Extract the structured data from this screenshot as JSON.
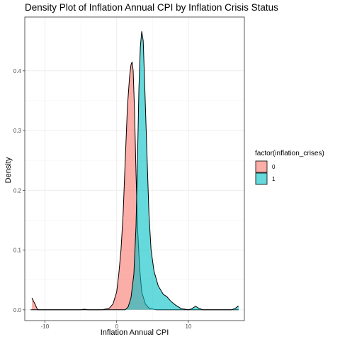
{
  "chart_data": {
    "type": "area",
    "title": "Density Plot of Inflation Annual CPI by Inflation Crisis Status",
    "xlabel": "Inflation Annual CPI",
    "ylabel": "Density",
    "xlim": [
      -12.8,
      17.8
    ],
    "ylim": [
      -0.018,
      0.49
    ],
    "x_ticks": [
      -10,
      0,
      10
    ],
    "y_ticks": [
      0.0,
      0.1,
      0.2,
      0.3,
      0.4
    ],
    "grid": true,
    "legend": {
      "title": "factor(inflation_crises)",
      "position": "right",
      "entries": [
        "0",
        "1"
      ]
    },
    "series": [
      {
        "name": "0",
        "color": "#F8766D",
        "points": [
          [
            -11.8,
            0.02
          ],
          [
            -11.4,
            0.01
          ],
          [
            -11.0,
            0.0
          ],
          [
            -9,
            0.0
          ],
          [
            -5,
            0.0
          ],
          [
            -4.5,
            0.001
          ],
          [
            -4,
            0.0
          ],
          [
            -2,
            0.0
          ],
          [
            -1,
            0.003
          ],
          [
            -0.5,
            0.01
          ],
          [
            0,
            0.03
          ],
          [
            0.3,
            0.06
          ],
          [
            0.6,
            0.1
          ],
          [
            0.9,
            0.16
          ],
          [
            1.2,
            0.25
          ],
          [
            1.5,
            0.34
          ],
          [
            1.8,
            0.39
          ],
          [
            2.0,
            0.41
          ],
          [
            2.15,
            0.415
          ],
          [
            2.3,
            0.4
          ],
          [
            2.5,
            0.33
          ],
          [
            2.7,
            0.23
          ],
          [
            2.9,
            0.14
          ],
          [
            3.2,
            0.07
          ],
          [
            3.5,
            0.03
          ],
          [
            4.0,
            0.01
          ],
          [
            4.5,
            0.003
          ],
          [
            5.5,
            0.0
          ],
          [
            10,
            0.0
          ],
          [
            17,
            0.0
          ]
        ]
      },
      {
        "name": "1",
        "color": "#00BFC4",
        "points": [
          [
            -12,
            0.0
          ],
          [
            0,
            0.0
          ],
          [
            1.2,
            0.0
          ],
          [
            1.6,
            0.005
          ],
          [
            2.0,
            0.02
          ],
          [
            2.4,
            0.06
          ],
          [
            2.7,
            0.14
          ],
          [
            2.9,
            0.25
          ],
          [
            3.1,
            0.37
          ],
          [
            3.3,
            0.44
          ],
          [
            3.5,
            0.466
          ],
          [
            3.7,
            0.45
          ],
          [
            3.9,
            0.38
          ],
          [
            4.2,
            0.27
          ],
          [
            4.5,
            0.16
          ],
          [
            4.8,
            0.1
          ],
          [
            5.2,
            0.065
          ],
          [
            5.8,
            0.04
          ],
          [
            6.5,
            0.026
          ],
          [
            7.0,
            0.022
          ],
          [
            7.5,
            0.015
          ],
          [
            8.2,
            0.008
          ],
          [
            9.0,
            0.002
          ],
          [
            10.0,
            0.0
          ],
          [
            10.5,
            0.002
          ],
          [
            11.0,
            0.006
          ],
          [
            11.4,
            0.003
          ],
          [
            12,
            0.0
          ],
          [
            16,
            0.0
          ],
          [
            16.6,
            0.003
          ],
          [
            16.9,
            0.006
          ],
          [
            17.0,
            0.006
          ]
        ]
      }
    ]
  }
}
